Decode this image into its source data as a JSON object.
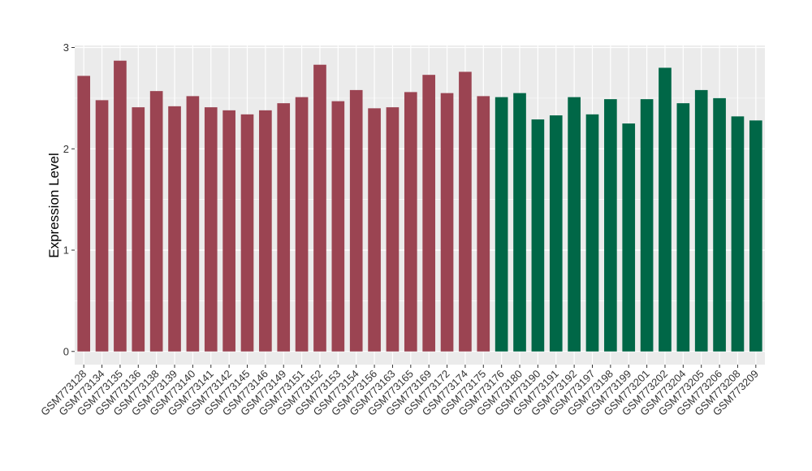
{
  "chart_data": {
    "type": "bar",
    "ylabel": "Expression Level",
    "xlabel": "",
    "title": "",
    "ylim": [
      -0.13,
      3.02
    ],
    "yticks": [
      0,
      1,
      2,
      3
    ],
    "grid": true,
    "legend": "none",
    "colors": {
      "group1": "#9b4452",
      "group2": "#006747",
      "panel": "#ebebeb",
      "grid": "#ffffff"
    },
    "categories": [
      "GSM773128",
      "GSM773134",
      "GSM773135",
      "GSM773136",
      "GSM773138",
      "GSM773139",
      "GSM773140",
      "GSM773141",
      "GSM773142",
      "GSM773145",
      "GSM773146",
      "GSM773149",
      "GSM773151",
      "GSM773152",
      "GSM773153",
      "GSM773154",
      "GSM773156",
      "GSM773163",
      "GSM773165",
      "GSM773169",
      "GSM773172",
      "GSM773174",
      "GSM773175",
      "GSM773176",
      "GSM773180",
      "GSM773190",
      "GSM773191",
      "GSM773192",
      "GSM773197",
      "GSM773198",
      "GSM773199",
      "GSM773201",
      "GSM773202",
      "GSM773204",
      "GSM773205",
      "GSM773206",
      "GSM773208",
      "GSM773209"
    ],
    "values": [
      2.72,
      2.48,
      2.87,
      2.41,
      2.57,
      2.42,
      2.52,
      2.41,
      2.38,
      2.34,
      2.38,
      2.45,
      2.51,
      2.83,
      2.47,
      2.58,
      2.4,
      2.41,
      2.56,
      2.73,
      2.55,
      2.76,
      2.52,
      2.51,
      2.55,
      2.29,
      2.33,
      2.51,
      2.34,
      2.49,
      2.25,
      2.49,
      2.8,
      2.45,
      2.58,
      2.5,
      2.32,
      2.28
    ],
    "groups": [
      1,
      1,
      1,
      1,
      1,
      1,
      1,
      1,
      1,
      1,
      1,
      1,
      1,
      1,
      1,
      1,
      1,
      1,
      1,
      1,
      1,
      1,
      1,
      2,
      2,
      2,
      2,
      2,
      2,
      2,
      2,
      2,
      2,
      2,
      2,
      2,
      2,
      2
    ]
  }
}
